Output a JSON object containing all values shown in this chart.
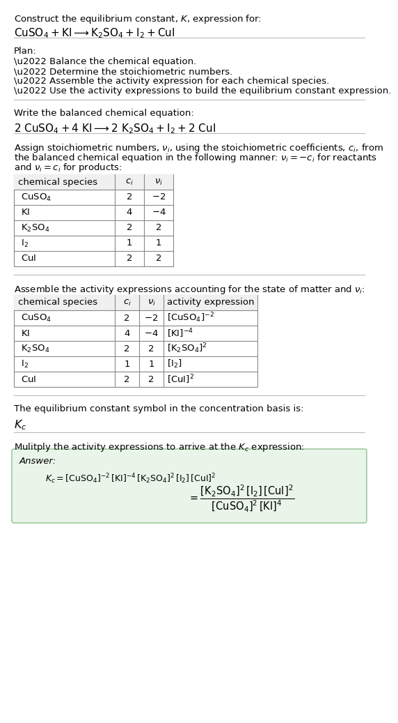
{
  "bg_color": "#ffffff",
  "text_color": "#000000",
  "separator_color": "#bbbbbb",
  "table_border_color": "#888888",
  "table_header_bg": "#f0f0f0",
  "answer_box_color": "#eaf5ea",
  "answer_box_border": "#90c090",
  "font_size": 9.5,
  "title_line1": "Construct the equilibrium constant, $K$, expression for:",
  "title_chem": "$\\mathrm{CuSO_4 + KI \\longrightarrow K_2SO_4 + I_2 + CuI}$",
  "plan_header": "Plan:",
  "plan_bullets": [
    "\\u2022 Balance the chemical equation.",
    "\\u2022 Determine the stoichiometric numbers.",
    "\\u2022 Assemble the activity expression for each chemical species.",
    "\\u2022 Use the activity expressions to build the equilibrium constant expression."
  ],
  "balanced_header": "Write the balanced chemical equation:",
  "balanced_eq": "$\\mathrm{2\\ CuSO_4 + 4\\ KI \\longrightarrow 2\\ K_2SO_4 + I_2 + 2\\ CuI}$",
  "stoich_intro_lines": [
    "Assign stoichiometric numbers, $\\nu_i$, using the stoichiometric coefficients, $c_i$, from",
    "the balanced chemical equation in the following manner: $\\nu_i = -c_i$ for reactants",
    "and $\\nu_i = c_i$ for products:"
  ],
  "table1_headers": [
    "chemical species",
    "$c_i$",
    "$\\nu_i$"
  ],
  "table1_rows": [
    [
      "$\\mathrm{CuSO_4}$",
      "2",
      "$-2$"
    ],
    [
      "$\\mathrm{KI}$",
      "4",
      "$-4$"
    ],
    [
      "$\\mathrm{K_2SO_4}$",
      "2",
      "2"
    ],
    [
      "$\\mathrm{I_2}$",
      "1",
      "1"
    ],
    [
      "$\\mathrm{CuI}$",
      "2",
      "2"
    ]
  ],
  "activity_intro": "Assemble the activity expressions accounting for the state of matter and $\\nu_i$:",
  "table2_headers": [
    "chemical species",
    "$c_i$",
    "$\\nu_i$",
    "activity expression"
  ],
  "table2_rows": [
    [
      "$\\mathrm{CuSO_4}$",
      "2",
      "$-2$",
      "$[\\mathrm{CuSO_4}]^{-2}$"
    ],
    [
      "$\\mathrm{KI}$",
      "4",
      "$-4$",
      "$[\\mathrm{KI}]^{-4}$"
    ],
    [
      "$\\mathrm{K_2SO_4}$",
      "2",
      "2",
      "$[\\mathrm{K_2SO_4}]^{2}$"
    ],
    [
      "$\\mathrm{I_2}$",
      "1",
      "1",
      "$[\\mathrm{I_2}]$"
    ],
    [
      "$\\mathrm{CuI}$",
      "2",
      "2",
      "$[\\mathrm{CuI}]^{2}$"
    ]
  ],
  "kc_text": "The equilibrium constant symbol in the concentration basis is:",
  "kc_symbol": "$K_c$",
  "multiply_text": "Mulitply the activity expressions to arrive at the $K_c$ expression:",
  "answer_label": "Answer:",
  "kc_full_eq": "$K_c = [\\mathrm{CuSO_4}]^{-2}\\,[\\mathrm{KI}]^{-4}\\,[\\mathrm{K_2SO_4}]^{2}\\,[\\mathrm{I_2}]\\,[\\mathrm{CuI}]^{2}$",
  "kc_frac_eq": "$= \\dfrac{[\\mathrm{K_2SO_4}]^{2}\\,[\\mathrm{I_2}]\\,[\\mathrm{CuI}]^{2}}{[\\mathrm{CuSO_4}]^{2}\\,[\\mathrm{KI}]^{4}}$"
}
